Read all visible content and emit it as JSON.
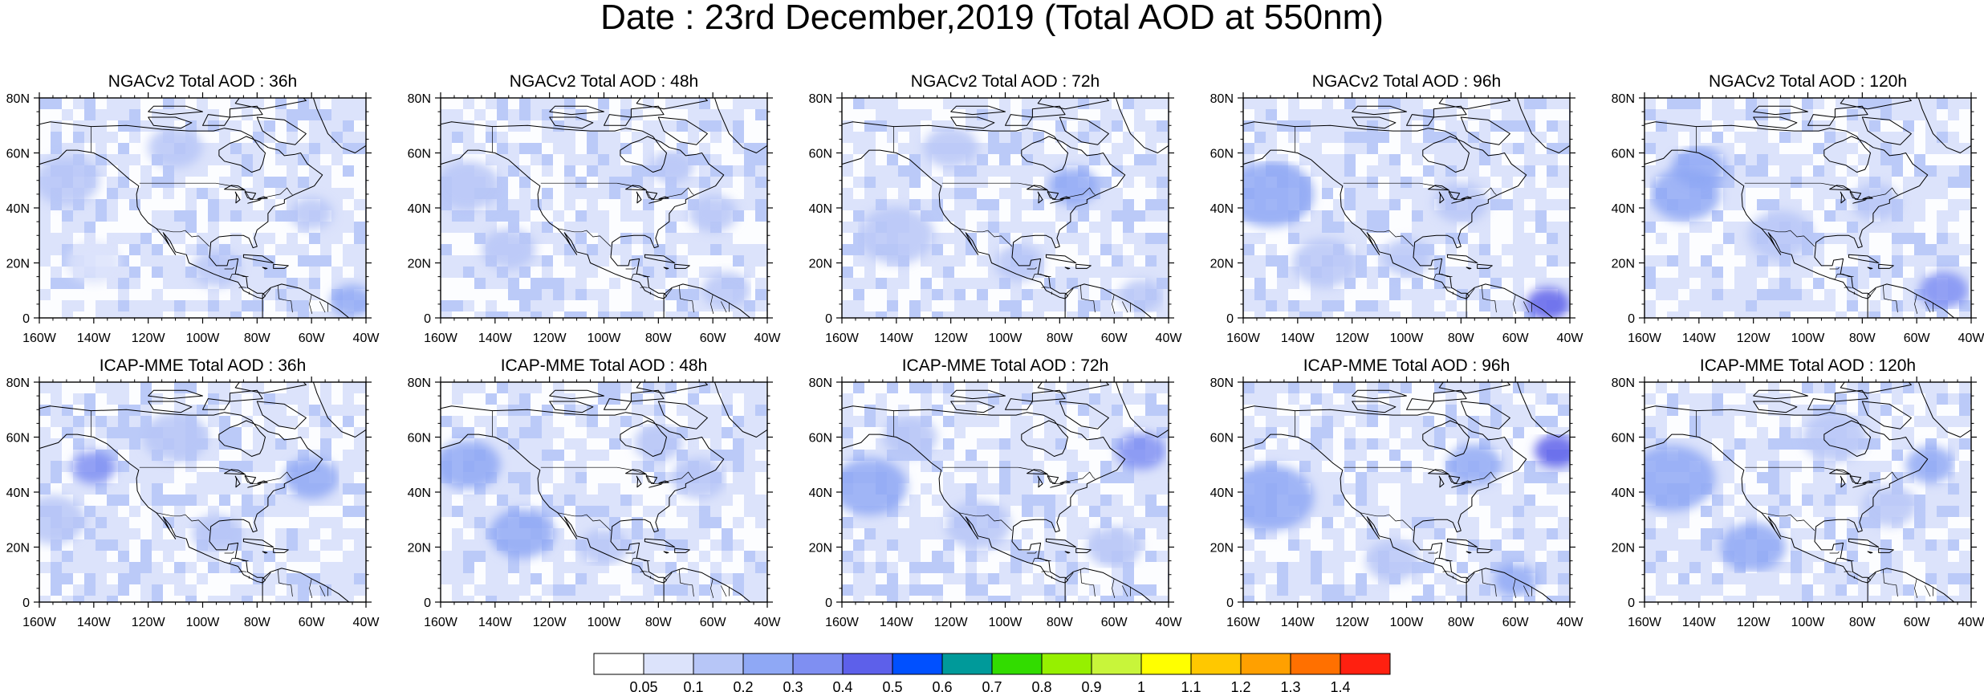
{
  "figure": {
    "title": "Date : 23rd December,2019 (Total AOD at 550nm)"
  },
  "axes": {
    "lat_ticks": [
      "80N",
      "60N",
      "40N",
      "20N",
      "0"
    ],
    "lon_ticks": [
      "160W",
      "140W",
      "120W",
      "100W",
      "80W",
      "60W",
      "40W"
    ]
  },
  "panels": [
    {
      "title": "NGACv2 Total AOD : 36h",
      "model": "NGACv2",
      "forecast_hour": 36
    },
    {
      "title": "NGACv2 Total AOD : 48h",
      "model": "NGACv2",
      "forecast_hour": 48
    },
    {
      "title": "NGACv2 Total AOD : 72h",
      "model": "NGACv2",
      "forecast_hour": 72
    },
    {
      "title": "NGACv2 Total AOD : 96h",
      "model": "NGACv2",
      "forecast_hour": 96
    },
    {
      "title": "NGACv2 Total AOD : 120h",
      "model": "NGACv2",
      "forecast_hour": 120
    },
    {
      "title": "ICAP-MME Total AOD : 36h",
      "model": "ICAP-MME",
      "forecast_hour": 36
    },
    {
      "title": "ICAP-MME Total AOD : 48h",
      "model": "ICAP-MME",
      "forecast_hour": 48
    },
    {
      "title": "ICAP-MME Total AOD : 72h",
      "model": "ICAP-MME",
      "forecast_hour": 72
    },
    {
      "title": "ICAP-MME Total AOD : 96h",
      "model": "ICAP-MME",
      "forecast_hour": 96
    },
    {
      "title": "ICAP-MME Total AOD : 120h",
      "model": "ICAP-MME",
      "forecast_hour": 120
    }
  ],
  "colorbar": {
    "labels": [
      "0.05",
      "0.1",
      "0.2",
      "0.3",
      "0.4",
      "0.5",
      "0.6",
      "0.7",
      "0.8",
      "0.9",
      "1",
      "1.1",
      "1.2",
      "1.3",
      "1.4"
    ],
    "colors": [
      "#ffffff",
      "#dce3fb",
      "#b7c6f7",
      "#8fa8f5",
      "#7f8ff2",
      "#5d60ea",
      "#0050ff",
      "#009a9a",
      "#32dc00",
      "#96f000",
      "#c8f53a",
      "#ffff00",
      "#ffc800",
      "#ffa000",
      "#ff7000",
      "#ff2010"
    ]
  }
}
